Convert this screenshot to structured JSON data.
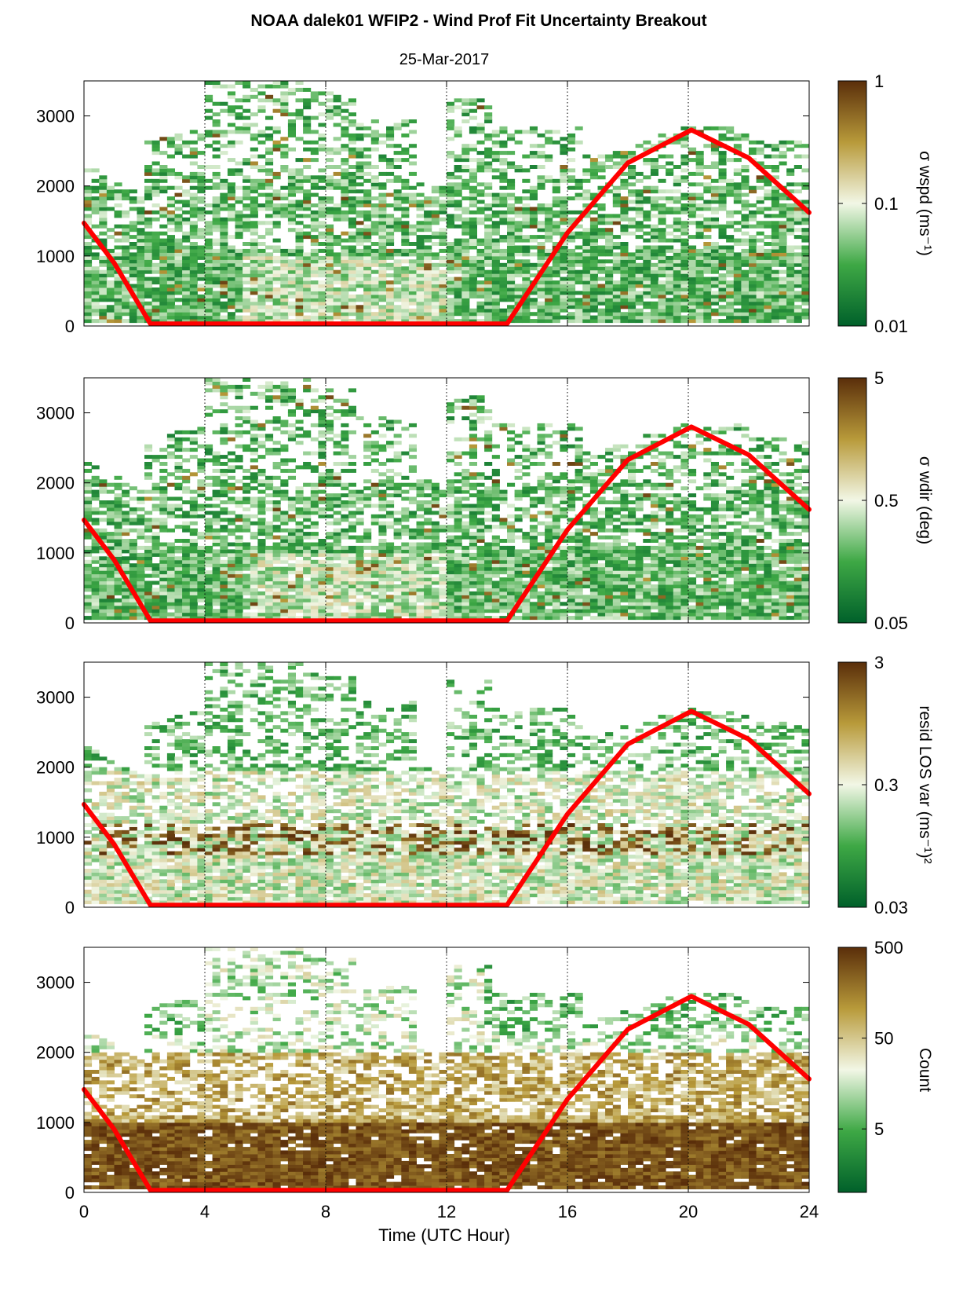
{
  "figure": {
    "title": "NOAA dalek01 WFIP2 - Wind Prof Fit Uncertainty Breakout",
    "subtitle": "25-Mar-2017",
    "xlabel": "Time (UTC Hour)",
    "colors": {
      "low": "#00602a",
      "mid": "#f2f7e6",
      "high": "#5a2e0a",
      "overlay": "#ff0000",
      "grid": "#000000"
    }
  },
  "chart_data": [
    {
      "type": "heatmap",
      "panel": "sigma-wspd",
      "x": {
        "label": "Time (UTC Hour)",
        "range": [
          0,
          24
        ],
        "ticks": [
          0,
          4,
          8,
          12,
          16,
          20,
          24
        ]
      },
      "y": {
        "label": "",
        "range": [
          0,
          3500
        ],
        "ticks": [
          0,
          1000,
          2000,
          3000
        ]
      },
      "colorbar": {
        "label": "σ wspd (ms⁻¹)",
        "scale": "log",
        "range": [
          0.01,
          1
        ],
        "ticks": [
          "0.01",
          "0.1",
          "1"
        ],
        "tick_values": [
          0.01,
          0.1,
          1
        ]
      },
      "grid": "dotted vertical at 4-hour intervals",
      "overlay_line": {
        "color": "red",
        "points": [
          [
            0,
            1470
          ],
          [
            1,
            900
          ],
          [
            2.2,
            30
          ],
          [
            14.0,
            30
          ],
          [
            16,
            1330
          ],
          [
            18,
            2330
          ],
          [
            20.1,
            2800
          ],
          [
            22,
            2400
          ],
          [
            24,
            1620
          ]
        ]
      }
    },
    {
      "type": "heatmap",
      "panel": "sigma-wdir",
      "x": {
        "label": "Time (UTC Hour)",
        "range": [
          0,
          24
        ],
        "ticks": [
          0,
          4,
          8,
          12,
          16,
          20,
          24
        ]
      },
      "y": {
        "label": "",
        "range": [
          0,
          3500
        ],
        "ticks": [
          0,
          1000,
          2000,
          3000
        ]
      },
      "colorbar": {
        "label": "σ wdir (deg)",
        "scale": "log",
        "range": [
          0.05,
          5
        ],
        "ticks": [
          "0.05",
          "0.5",
          "5"
        ],
        "tick_values": [
          0.05,
          0.5,
          5
        ]
      },
      "grid": "dotted vertical at 4-hour intervals",
      "overlay_line": {
        "color": "red",
        "points": [
          [
            0,
            1470
          ],
          [
            1,
            900
          ],
          [
            2.2,
            30
          ],
          [
            14.0,
            30
          ],
          [
            16,
            1330
          ],
          [
            18,
            2330
          ],
          [
            20.1,
            2800
          ],
          [
            22,
            2400
          ],
          [
            24,
            1620
          ]
        ]
      }
    },
    {
      "type": "heatmap",
      "panel": "resid-los-var",
      "x": {
        "label": "Time (UTC Hour)",
        "range": [
          0,
          24
        ],
        "ticks": [
          0,
          4,
          8,
          12,
          16,
          20,
          24
        ]
      },
      "y": {
        "label": "",
        "range": [
          0,
          3500
        ],
        "ticks": [
          0,
          1000,
          2000,
          3000
        ]
      },
      "colorbar": {
        "label": "resid LOS var (ms⁻¹)²",
        "scale": "log",
        "range": [
          0.03,
          3
        ],
        "ticks": [
          "0.03",
          "0.3",
          "3"
        ],
        "tick_values": [
          0.03,
          0.3,
          3
        ]
      },
      "grid": "dotted vertical at 4-hour intervals",
      "overlay_line": {
        "color": "red",
        "points": [
          [
            0,
            1470
          ],
          [
            1,
            900
          ],
          [
            2.2,
            30
          ],
          [
            14.0,
            30
          ],
          [
            16,
            1330
          ],
          [
            18,
            2330
          ],
          [
            20.1,
            2800
          ],
          [
            22,
            2400
          ],
          [
            24,
            1620
          ]
        ]
      }
    },
    {
      "type": "heatmap",
      "panel": "count",
      "x": {
        "label": "Time (UTC Hour)",
        "range": [
          0,
          24
        ],
        "ticks": [
          0,
          4,
          8,
          12,
          16,
          20,
          24
        ]
      },
      "y": {
        "label": "",
        "range": [
          0,
          3500
        ],
        "ticks": [
          0,
          1000,
          2000,
          3000
        ]
      },
      "colorbar": {
        "label": "Count",
        "scale": "log",
        "range": [
          1,
          500
        ],
        "ticks": [
          "5",
          "50",
          "500"
        ],
        "tick_values": [
          5,
          50,
          500
        ]
      },
      "grid": "dotted vertical at 4-hour intervals",
      "overlay_line": {
        "color": "red",
        "points": [
          [
            0,
            1470
          ],
          [
            1,
            900
          ],
          [
            2.2,
            30
          ],
          [
            14.0,
            30
          ],
          [
            16,
            1330
          ],
          [
            18,
            2330
          ],
          [
            20.1,
            2800
          ],
          [
            22,
            2400
          ],
          [
            24,
            1620
          ]
        ]
      }
    }
  ]
}
